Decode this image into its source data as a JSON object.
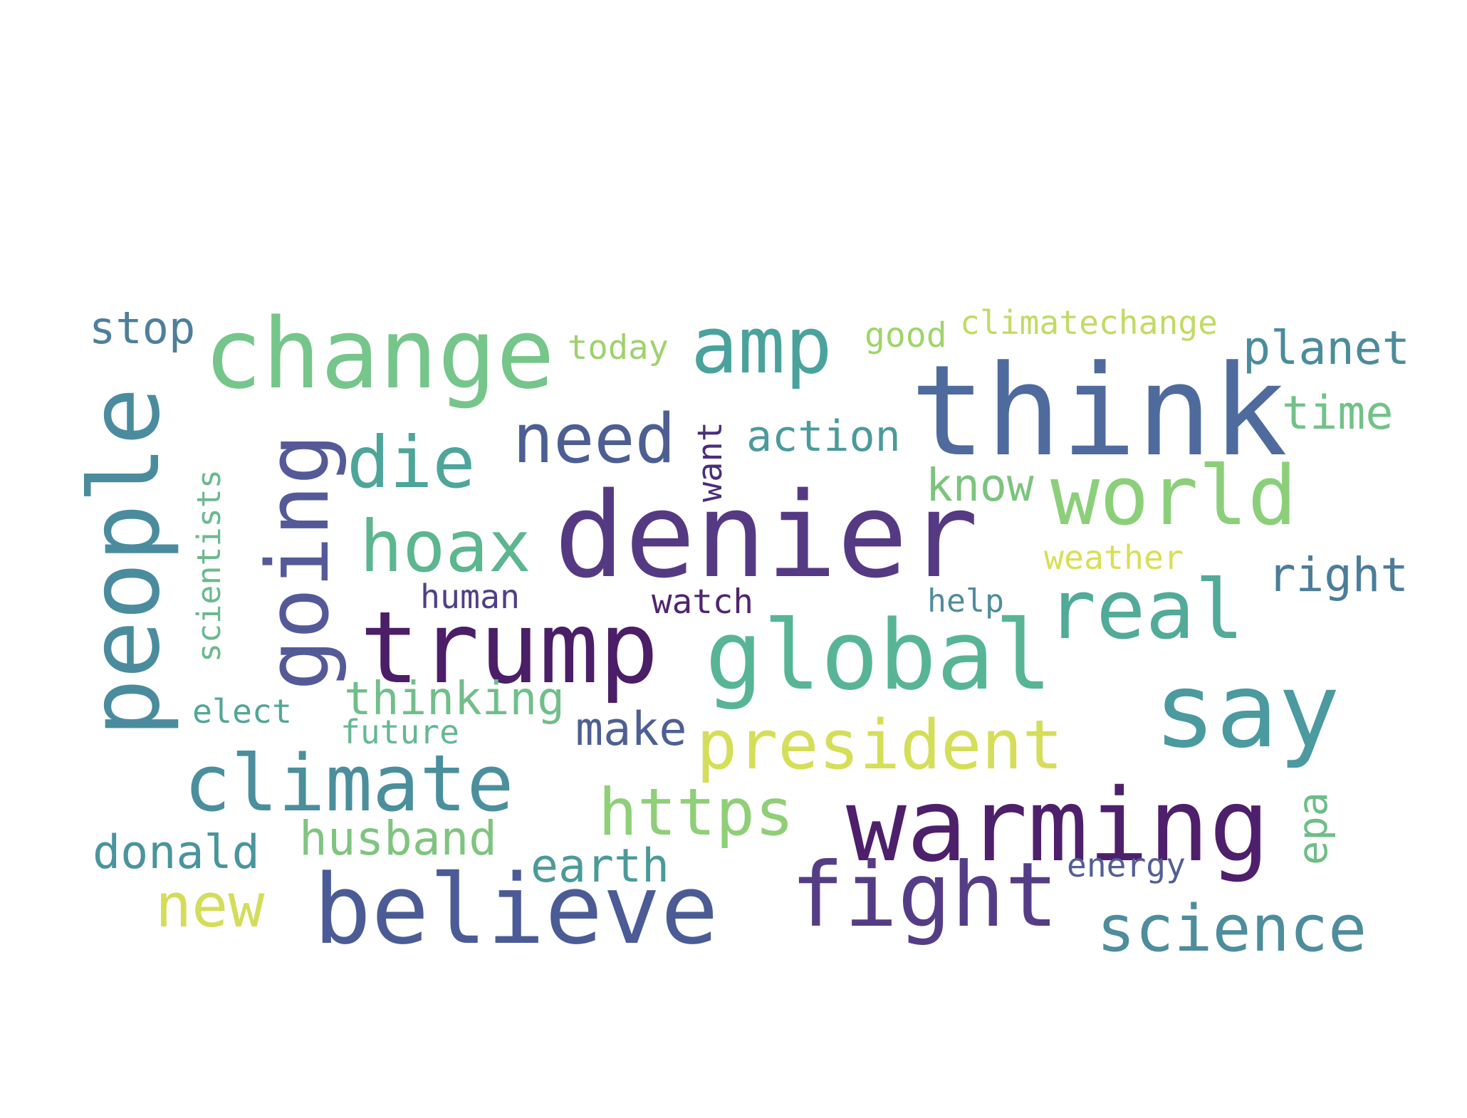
{
  "word_cloud": {
    "words": [
      {
        "text": "think",
        "color": "#4f6b9d"
      },
      {
        "text": "denier",
        "color": "#553a83"
      },
      {
        "text": "say",
        "color": "#4b9aa0"
      },
      {
        "text": "change",
        "color": "#76c58a"
      },
      {
        "text": "people",
        "color": "#4a8c9d"
      },
      {
        "text": "going",
        "color": "#545a97"
      },
      {
        "text": "world",
        "color": "#8ccf7a"
      },
      {
        "text": "amp",
        "color": "#4aa29d"
      },
      {
        "text": "trump",
        "color": "#4b1e67"
      },
      {
        "text": "global",
        "color": "#57b595"
      },
      {
        "text": "real",
        "color": "#52aa98"
      },
      {
        "text": "climate",
        "color": "#4b8f9d"
      },
      {
        "text": "warming",
        "color": "#4e1f6b"
      },
      {
        "text": "believe",
        "color": "#4b5b95"
      },
      {
        "text": "fight",
        "color": "#553d86"
      },
      {
        "text": "need",
        "color": "#4d5e93"
      },
      {
        "text": "hoax",
        "color": "#5cb690"
      },
      {
        "text": "die",
        "color": "#4ea59a"
      },
      {
        "text": "president",
        "color": "#d4de59"
      },
      {
        "text": "https",
        "color": "#8fcf77"
      },
      {
        "text": "science",
        "color": "#4d8d9c"
      },
      {
        "text": "new",
        "color": "#d3dd59"
      },
      {
        "text": "scientists",
        "color": "#6cb98f"
      },
      {
        "text": "action",
        "color": "#4b9a9c"
      },
      {
        "text": "planet",
        "color": "#4b8c9b"
      },
      {
        "text": "time",
        "color": "#71c288"
      },
      {
        "text": "right",
        "color": "#4b7d99"
      },
      {
        "text": "stop",
        "color": "#4f7f9a"
      },
      {
        "text": "know",
        "color": "#7cc47e"
      },
      {
        "text": "donald",
        "color": "#4a949d"
      },
      {
        "text": "husband",
        "color": "#7fc480"
      },
      {
        "text": "thinking",
        "color": "#71be8a"
      },
      {
        "text": "earth",
        "color": "#4b9a99"
      },
      {
        "text": "make",
        "color": "#4e5f93"
      },
      {
        "text": "epa",
        "color": "#6fbd87"
      },
      {
        "text": "today",
        "color": "#9fd16e"
      },
      {
        "text": "good",
        "color": "#a0d46a"
      },
      {
        "text": "climatechange",
        "color": "#c1db64"
      },
      {
        "text": "want",
        "color": "#4a2d7a"
      },
      {
        "text": "weather",
        "color": "#d8df55"
      },
      {
        "text": "human",
        "color": "#4f3f86"
      },
      {
        "text": "watch",
        "color": "#50256f"
      },
      {
        "text": "help",
        "color": "#4f8c9c"
      },
      {
        "text": "elect",
        "color": "#53a697"
      },
      {
        "text": "future",
        "color": "#65b893"
      },
      {
        "text": "energy",
        "color": "#545e95"
      }
    ]
  }
}
